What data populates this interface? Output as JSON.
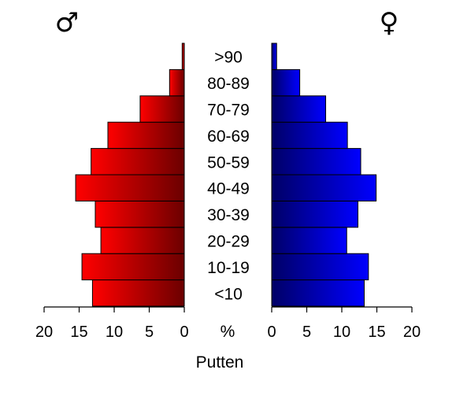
{
  "chart_data": {
    "type": "bar",
    "subtype": "population-pyramid",
    "title": "",
    "xlabel": "Putten",
    "center_label": "%",
    "left_symbol": "♂",
    "right_symbol": "♀",
    "categories": [
      "<10",
      "10-19",
      "20-29",
      "30-39",
      "40-49",
      "50-59",
      "60-69",
      "70-79",
      "80-89",
      ">90"
    ],
    "series": [
      {
        "name": "♂",
        "side": "left",
        "color": "#ff0000",
        "color_dark": "#6b0000",
        "values": [
          13.1,
          14.6,
          11.9,
          12.7,
          15.5,
          13.3,
          10.9,
          6.3,
          2.1,
          0.3
        ]
      },
      {
        "name": "♀",
        "side": "right",
        "color": "#0000ff",
        "color_dark": "#000066",
        "values": [
          13.2,
          13.8,
          10.7,
          12.3,
          14.9,
          12.7,
          10.8,
          7.7,
          4.0,
          0.7
        ]
      }
    ],
    "xlim": [
      0,
      20
    ],
    "ticks": [
      "0",
      "5",
      "10",
      "15",
      "20"
    ],
    "grid": false,
    "legend": "none"
  }
}
